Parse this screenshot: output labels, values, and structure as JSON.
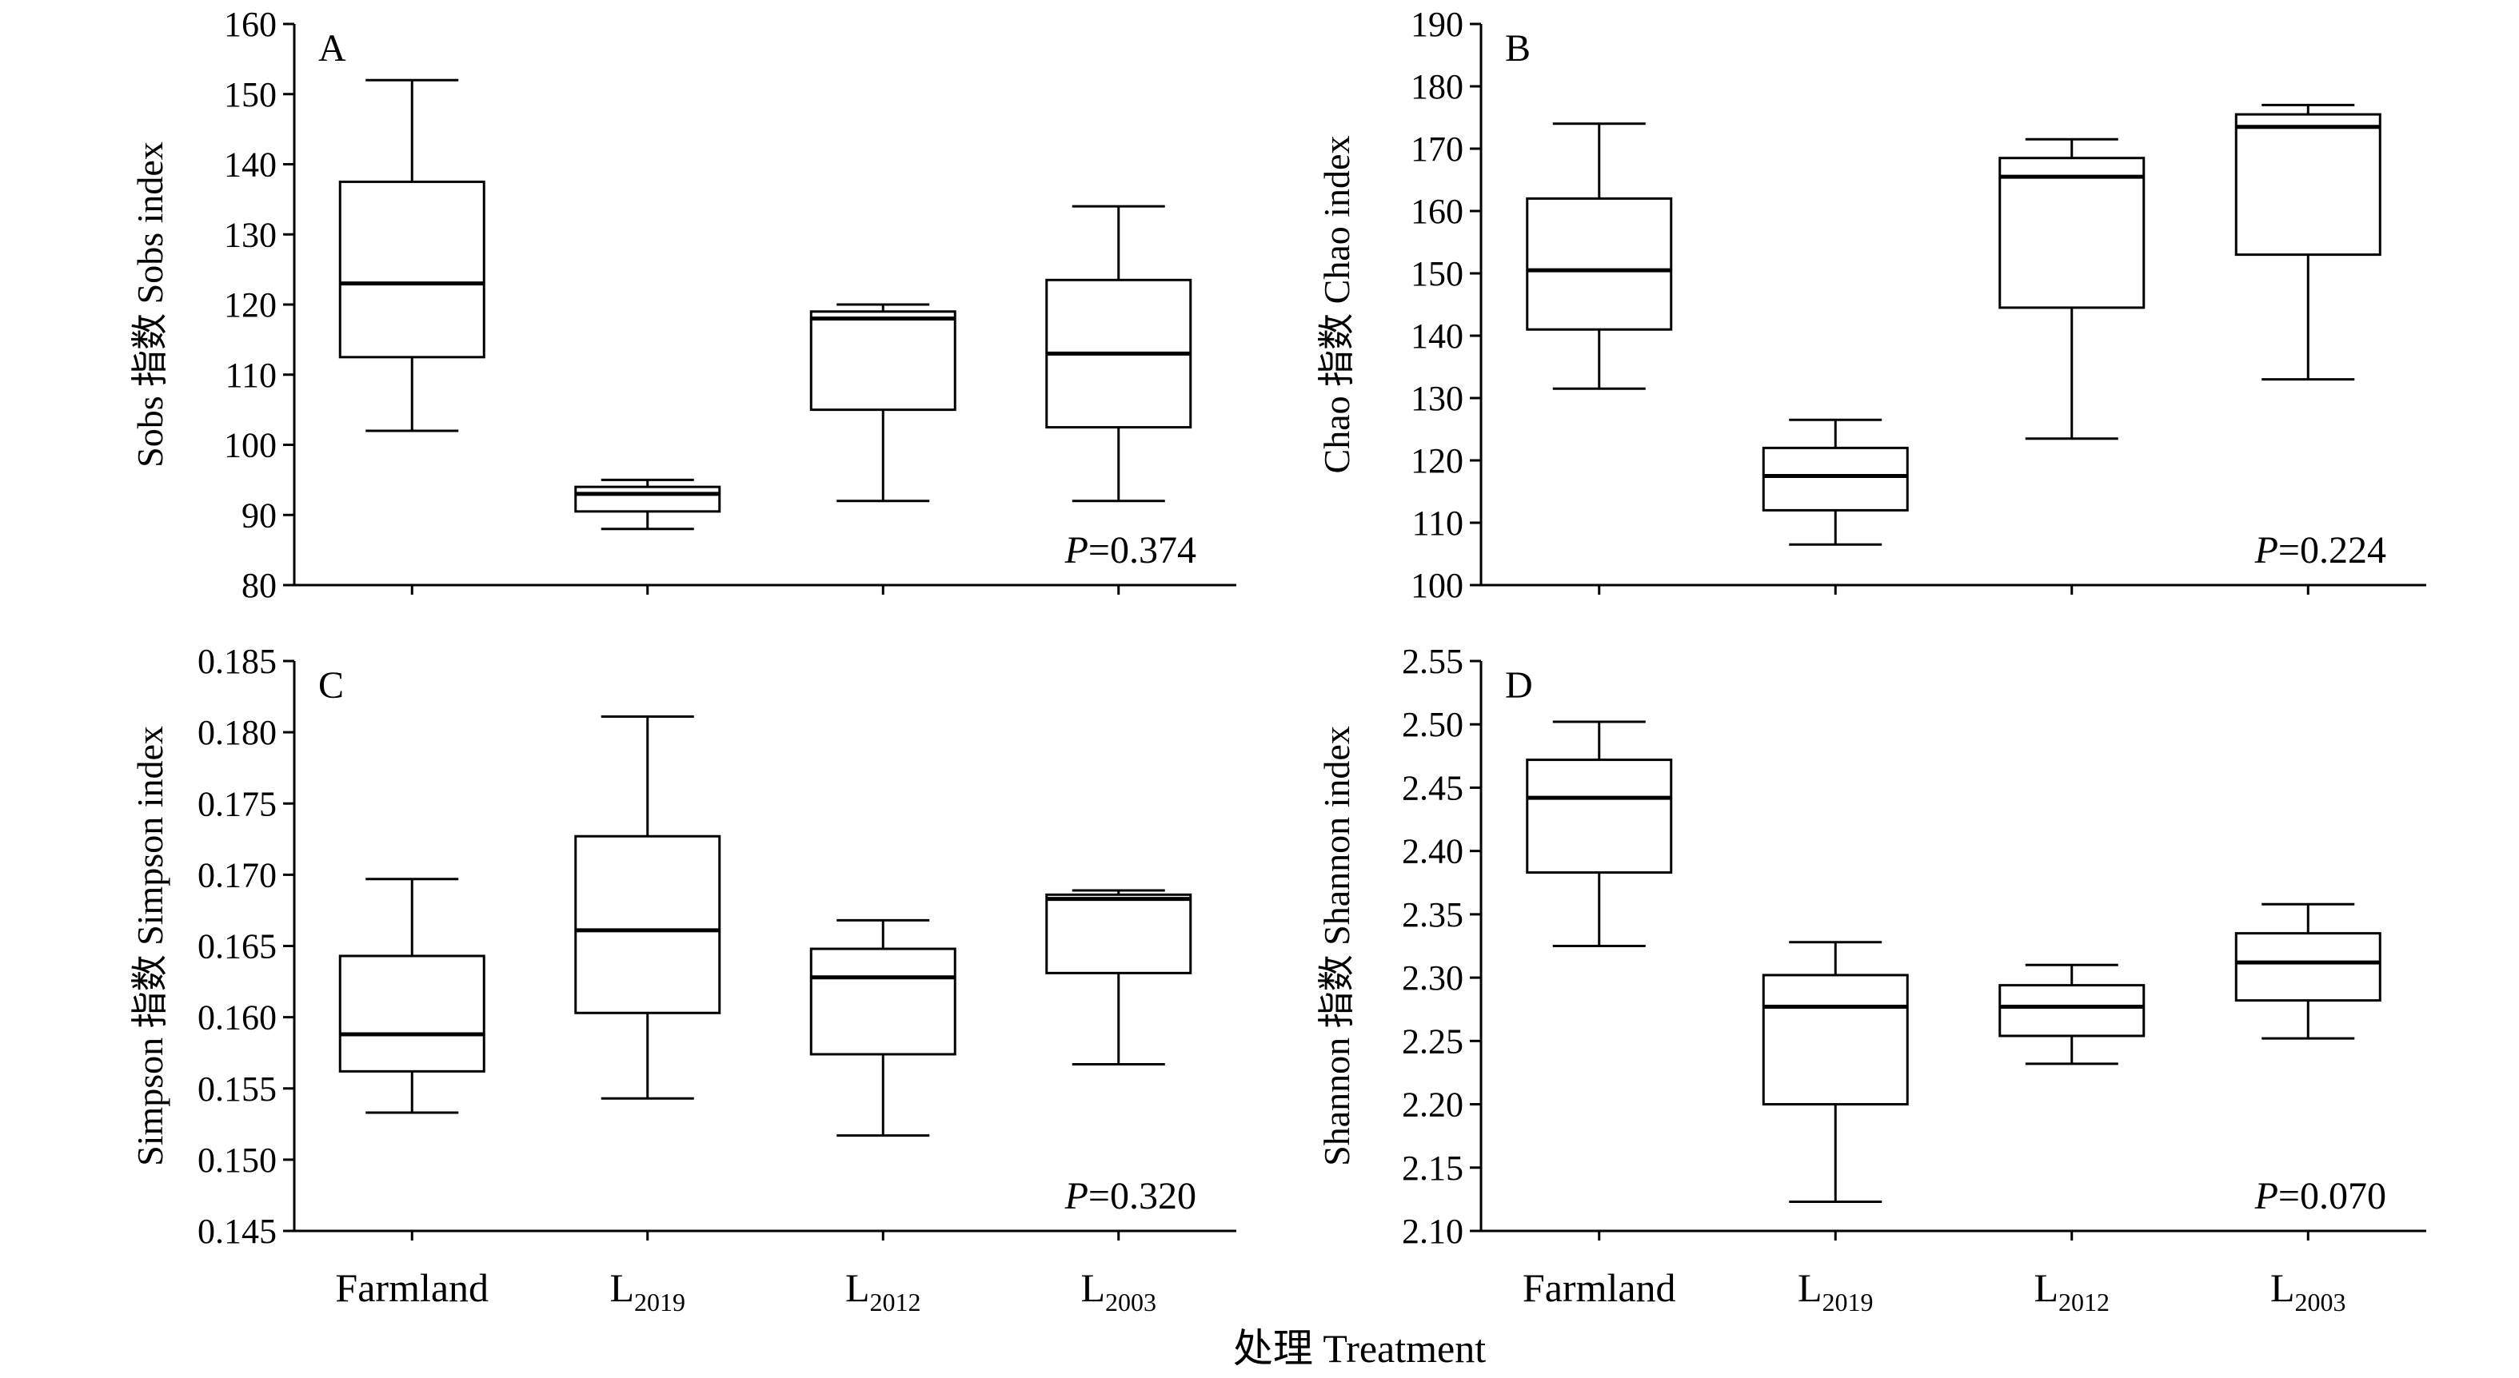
{
  "x_axis_title": "处理 Treatment",
  "chart_data": [
    {
      "type": "box",
      "panel_label": "A",
      "ylabel": "Sobs 指数 Sobs index",
      "ylim": [
        80,
        160
      ],
      "yticks": [
        80,
        90,
        100,
        110,
        120,
        130,
        140,
        150,
        160
      ],
      "ytick_labels": [
        "80",
        "90",
        "100",
        "110",
        "120",
        "130",
        "140",
        "150",
        "160"
      ],
      "categories": [
        {
          "main": "Farmland",
          "sub": ""
        },
        {
          "main": "L",
          "sub": "2019"
        },
        {
          "main": "L",
          "sub": "2012"
        },
        {
          "main": "L",
          "sub": "2003"
        }
      ],
      "boxes": [
        {
          "min": 102,
          "q1": 112.5,
          "median": 123,
          "q3": 137.5,
          "max": 152
        },
        {
          "min": 88,
          "q1": 90.5,
          "median": 93,
          "q3": 94,
          "max": 95
        },
        {
          "min": 92,
          "q1": 105,
          "median": 118,
          "q3": 119,
          "max": 120
        },
        {
          "min": 92,
          "q1": 102.5,
          "median": 113,
          "q3": 123.5,
          "max": 134
        }
      ],
      "p_value": {
        "prefix": "P",
        "value": "=0.374"
      }
    },
    {
      "type": "box",
      "panel_label": "B",
      "ylabel": "Chao 指数 Chao index",
      "ylim": [
        100,
        190
      ],
      "yticks": [
        100,
        110,
        120,
        130,
        140,
        150,
        160,
        170,
        180,
        190
      ],
      "ytick_labels": [
        "100",
        "110",
        "120",
        "130",
        "140",
        "150",
        "160",
        "170",
        "180",
        "190"
      ],
      "categories": [
        {
          "main": "Farmland",
          "sub": ""
        },
        {
          "main": "L",
          "sub": "2019"
        },
        {
          "main": "L",
          "sub": "2012"
        },
        {
          "main": "L",
          "sub": "2003"
        }
      ],
      "boxes": [
        {
          "min": 131.5,
          "q1": 141,
          "median": 150.5,
          "q3": 162,
          "max": 174
        },
        {
          "min": 106.5,
          "q1": 112,
          "median": 117.5,
          "q3": 122,
          "max": 126.5
        },
        {
          "min": 123.5,
          "q1": 144.5,
          "median": 165.5,
          "q3": 168.5,
          "max": 171.5
        },
        {
          "min": 133,
          "q1": 153,
          "median": 173.5,
          "q3": 175.5,
          "max": 177
        }
      ],
      "p_value": {
        "prefix": "P",
        "value": "=0.224"
      }
    },
    {
      "type": "box",
      "panel_label": "C",
      "ylabel": "Simpson 指数 Simpson index",
      "ylim": [
        0.145,
        0.185
      ],
      "yticks": [
        0.145,
        0.15,
        0.155,
        0.16,
        0.165,
        0.17,
        0.175,
        0.18,
        0.185
      ],
      "ytick_labels": [
        "0.145",
        "0.150",
        "0.155",
        "0.160",
        "0.165",
        "0.170",
        "0.175",
        "0.180",
        "0.185"
      ],
      "categories": [
        {
          "main": "Farmland",
          "sub": ""
        },
        {
          "main": "L",
          "sub": "2019"
        },
        {
          "main": "L",
          "sub": "2012"
        },
        {
          "main": "L",
          "sub": "2003"
        }
      ],
      "boxes": [
        {
          "min": 0.1533,
          "q1": 0.1562,
          "median": 0.1588,
          "q3": 0.1643,
          "max": 0.1697
        },
        {
          "min": 0.1543,
          "q1": 0.1603,
          "median": 0.1661,
          "q3": 0.1727,
          "max": 0.1811
        },
        {
          "min": 0.1517,
          "q1": 0.1574,
          "median": 0.1628,
          "q3": 0.1648,
          "max": 0.1668
        },
        {
          "min": 0.1567,
          "q1": 0.1631,
          "median": 0.1683,
          "q3": 0.1686,
          "max": 0.1689
        }
      ],
      "p_value": {
        "prefix": "P",
        "value": "=0.320"
      }
    },
    {
      "type": "box",
      "panel_label": "D",
      "ylabel": "Shannon 指数 Shannon index",
      "ylim": [
        2.1,
        2.55
      ],
      "yticks": [
        2.1,
        2.15,
        2.2,
        2.25,
        2.3,
        2.35,
        2.4,
        2.45,
        2.5,
        2.55
      ],
      "ytick_labels": [
        "2.10",
        "2.15",
        "2.20",
        "2.25",
        "2.30",
        "2.35",
        "2.40",
        "2.45",
        "2.50",
        "2.55"
      ],
      "categories": [
        {
          "main": "Farmland",
          "sub": ""
        },
        {
          "main": "L",
          "sub": "2019"
        },
        {
          "main": "L",
          "sub": "2012"
        },
        {
          "main": "L",
          "sub": "2003"
        }
      ],
      "boxes": [
        {
          "min": 2.325,
          "q1": 2.383,
          "median": 2.442,
          "q3": 2.472,
          "max": 2.502
        },
        {
          "min": 2.123,
          "q1": 2.2,
          "median": 2.277,
          "q3": 2.302,
          "max": 2.328
        },
        {
          "min": 2.232,
          "q1": 2.254,
          "median": 2.277,
          "q3": 2.294,
          "max": 2.31
        },
        {
          "min": 2.252,
          "q1": 2.282,
          "median": 2.312,
          "q3": 2.335,
          "max": 2.358
        }
      ],
      "p_value": {
        "prefix": "P",
        "value": "=0.070"
      }
    }
  ]
}
